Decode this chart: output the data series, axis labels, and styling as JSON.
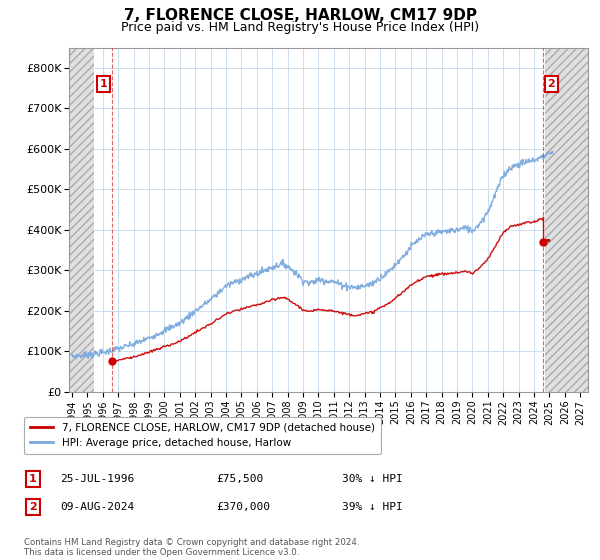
{
  "title": "7, FLORENCE CLOSE, HARLOW, CM17 9DP",
  "subtitle": "Price paid vs. HM Land Registry's House Price Index (HPI)",
  "title_fontsize": 11,
  "subtitle_fontsize": 9,
  "ylim": [
    0,
    850000
  ],
  "yticks": [
    0,
    100000,
    200000,
    300000,
    400000,
    500000,
    600000,
    700000,
    800000
  ],
  "ytick_labels": [
    "£0",
    "£100K",
    "£200K",
    "£300K",
    "£400K",
    "£500K",
    "£600K",
    "£700K",
    "£800K"
  ],
  "xlim_start": 1993.8,
  "xlim_end": 2027.5,
  "hatch_left_end": 1995.4,
  "hatch_right_start": 2024.7,
  "xtick_years": [
    1994,
    1995,
    1996,
    1997,
    1998,
    1999,
    2000,
    2001,
    2002,
    2003,
    2004,
    2005,
    2006,
    2007,
    2008,
    2009,
    2010,
    2011,
    2012,
    2013,
    2014,
    2015,
    2016,
    2017,
    2018,
    2019,
    2020,
    2021,
    2022,
    2023,
    2024,
    2025,
    2026,
    2027
  ],
  "transaction1_x": 1996.56,
  "transaction1_y": 75500,
  "transaction2_x": 2024.61,
  "transaction2_y": 370000,
  "transaction_color": "#cc0000",
  "hpi_color": "#7aaadd",
  "legend_label1": "7, FLORENCE CLOSE, HARLOW, CM17 9DP (detached house)",
  "legend_label2": "HPI: Average price, detached house, Harlow",
  "annotation1_label": "1",
  "annotation2_label": "2",
  "annotation1_date": "25-JUL-1996",
  "annotation1_price": "£75,500",
  "annotation1_hpi": "30% ↓ HPI",
  "annotation2_date": "09-AUG-2024",
  "annotation2_price": "£370,000",
  "annotation2_hpi": "39% ↓ HPI",
  "copyright_text": "Contains HM Land Registry data © Crown copyright and database right 2024.\nThis data is licensed under the Open Government Licence v3.0.",
  "grid_color": "#ccddee",
  "hatch_facecolor": "#e0e0e0",
  "hatch_edgecolor": "#aaaaaa"
}
